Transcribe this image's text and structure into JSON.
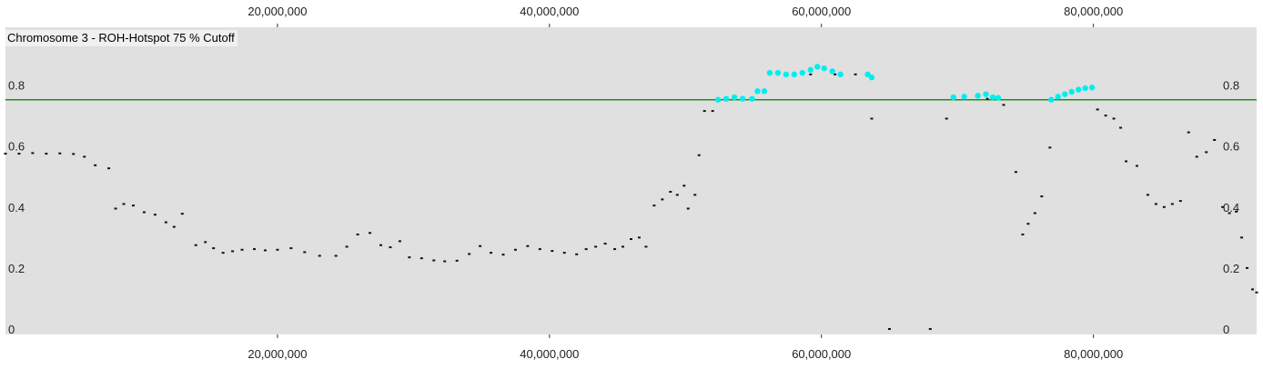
{
  "chart_data": {
    "type": "scatter",
    "title": "Chromosome 3 - ROH-Hotspot 75 % Cutoff",
    "xlabel": "",
    "ylabel": "",
    "xlim": [
      0,
      92000000
    ],
    "ylim": [
      0,
      1
    ],
    "x_ticks": [
      20000000,
      40000000,
      60000000,
      80000000
    ],
    "x_tick_labels": [
      "20,000,000",
      "40,000,000",
      "60,000,000",
      "80,000,000"
    ],
    "y_ticks": [
      0,
      0.2,
      0.4,
      0.6,
      0.8
    ],
    "y_tick_labels": [
      "0",
      "0.2",
      "0.4",
      "0.6",
      "0.8"
    ],
    "cutoff": 0.752,
    "colors": {
      "background": "#e0e0e0",
      "below_cutoff": "#111111",
      "above_cutoff": "#00eeee",
      "cutoff_line": "#228b22"
    },
    "series": [
      {
        "points": [
          [
            0,
            0.575
          ],
          [
            1000000,
            0.575
          ],
          [
            2000000,
            0.577
          ],
          [
            3000000,
            0.575
          ],
          [
            4000000,
            0.576
          ],
          [
            5000000,
            0.574
          ],
          [
            5800000,
            0.565
          ],
          [
            6600000,
            0.537
          ],
          [
            7600000,
            0.527
          ],
          [
            8100000,
            0.395
          ],
          [
            8700000,
            0.41
          ],
          [
            9400000,
            0.405
          ],
          [
            10200000,
            0.383
          ],
          [
            11000000,
            0.375
          ],
          [
            11800000,
            0.35
          ],
          [
            12400000,
            0.335
          ],
          [
            13000000,
            0.378
          ],
          [
            14000000,
            0.275
          ],
          [
            14700000,
            0.285
          ],
          [
            15300000,
            0.265
          ],
          [
            16000000,
            0.25
          ],
          [
            16700000,
            0.255
          ],
          [
            17400000,
            0.26
          ],
          [
            18300000,
            0.262
          ],
          [
            19100000,
            0.258
          ],
          [
            20000000,
            0.26
          ],
          [
            21000000,
            0.265
          ],
          [
            22000000,
            0.252
          ],
          [
            23100000,
            0.24
          ],
          [
            24300000,
            0.24
          ],
          [
            25100000,
            0.27
          ],
          [
            25900000,
            0.31
          ],
          [
            26800000,
            0.315
          ],
          [
            27600000,
            0.275
          ],
          [
            28300000,
            0.268
          ],
          [
            29000000,
            0.288
          ],
          [
            29700000,
            0.235
          ],
          [
            30600000,
            0.232
          ],
          [
            31500000,
            0.225
          ],
          [
            32300000,
            0.222
          ],
          [
            33200000,
            0.224
          ],
          [
            34100000,
            0.246
          ],
          [
            34900000,
            0.272
          ],
          [
            35700000,
            0.25
          ],
          [
            36600000,
            0.244
          ],
          [
            37500000,
            0.26
          ],
          [
            38400000,
            0.272
          ],
          [
            39300000,
            0.262
          ],
          [
            40200000,
            0.256
          ],
          [
            41100000,
            0.25
          ],
          [
            42000000,
            0.245
          ],
          [
            42700000,
            0.262
          ],
          [
            43400000,
            0.27
          ],
          [
            44100000,
            0.28
          ],
          [
            44800000,
            0.262
          ],
          [
            45400000,
            0.27
          ],
          [
            46000000,
            0.295
          ],
          [
            46600000,
            0.3
          ],
          [
            47100000,
            0.27
          ],
          [
            47700000,
            0.405
          ],
          [
            48300000,
            0.425
          ],
          [
            48900000,
            0.45
          ],
          [
            49400000,
            0.44
          ],
          [
            49900000,
            0.47
          ],
          [
            50200000,
            0.395
          ],
          [
            50700000,
            0.44
          ],
          [
            51000000,
            0.57
          ],
          [
            51400000,
            0.715
          ],
          [
            52000000,
            0.715
          ],
          [
            59200000,
            0.835
          ],
          [
            61000000,
            0.835
          ],
          [
            62500000,
            0.835
          ],
          [
            63700000,
            0.69
          ],
          [
            65000000,
            0.0
          ],
          [
            68000000,
            0.0
          ],
          [
            69200000,
            0.69
          ],
          [
            72200000,
            0.755
          ],
          [
            73400000,
            0.735
          ],
          [
            74300000,
            0.515
          ],
          [
            74800000,
            0.31
          ],
          [
            75200000,
            0.345
          ],
          [
            75700000,
            0.38
          ],
          [
            76200000,
            0.435
          ],
          [
            76800000,
            0.595
          ],
          [
            80300000,
            0.72
          ],
          [
            80900000,
            0.7
          ],
          [
            81500000,
            0.69
          ],
          [
            82000000,
            0.66
          ],
          [
            82400000,
            0.55
          ],
          [
            83200000,
            0.535
          ],
          [
            84000000,
            0.44
          ],
          [
            84600000,
            0.41
          ],
          [
            85200000,
            0.4
          ],
          [
            85800000,
            0.41
          ],
          [
            86400000,
            0.42
          ],
          [
            87000000,
            0.645
          ],
          [
            87600000,
            0.565
          ],
          [
            88300000,
            0.58
          ],
          [
            88900000,
            0.62
          ],
          [
            89500000,
            0.4
          ],
          [
            90000000,
            0.38
          ],
          [
            90500000,
            0.385
          ],
          [
            90900000,
            0.3
          ],
          [
            91300000,
            0.2
          ],
          [
            91700000,
            0.13
          ],
          [
            92000000,
            0.12
          ]
        ]
      },
      {
        "points": [
          [
            52400000,
            0.752
          ],
          [
            53000000,
            0.755
          ],
          [
            53600000,
            0.76
          ],
          [
            54200000,
            0.755
          ],
          [
            54900000,
            0.755
          ],
          [
            55300000,
            0.78
          ],
          [
            55800000,
            0.78
          ],
          [
            56200000,
            0.84
          ],
          [
            56800000,
            0.84
          ],
          [
            57400000,
            0.835
          ],
          [
            58000000,
            0.835
          ],
          [
            58600000,
            0.84
          ],
          [
            59200000,
            0.85
          ],
          [
            59700000,
            0.86
          ],
          [
            60200000,
            0.855
          ],
          [
            60800000,
            0.845
          ],
          [
            61400000,
            0.835
          ],
          [
            63400000,
            0.835
          ],
          [
            63700000,
            0.825
          ],
          [
            69700000,
            0.76
          ],
          [
            70500000,
            0.762
          ],
          [
            71500000,
            0.765
          ],
          [
            72100000,
            0.77
          ],
          [
            72600000,
            0.76
          ],
          [
            73000000,
            0.758
          ],
          [
            76900000,
            0.752
          ],
          [
            77400000,
            0.762
          ],
          [
            77900000,
            0.77
          ],
          [
            78400000,
            0.778
          ],
          [
            78900000,
            0.785
          ],
          [
            79400000,
            0.79
          ],
          [
            79900000,
            0.792
          ]
        ]
      }
    ]
  }
}
